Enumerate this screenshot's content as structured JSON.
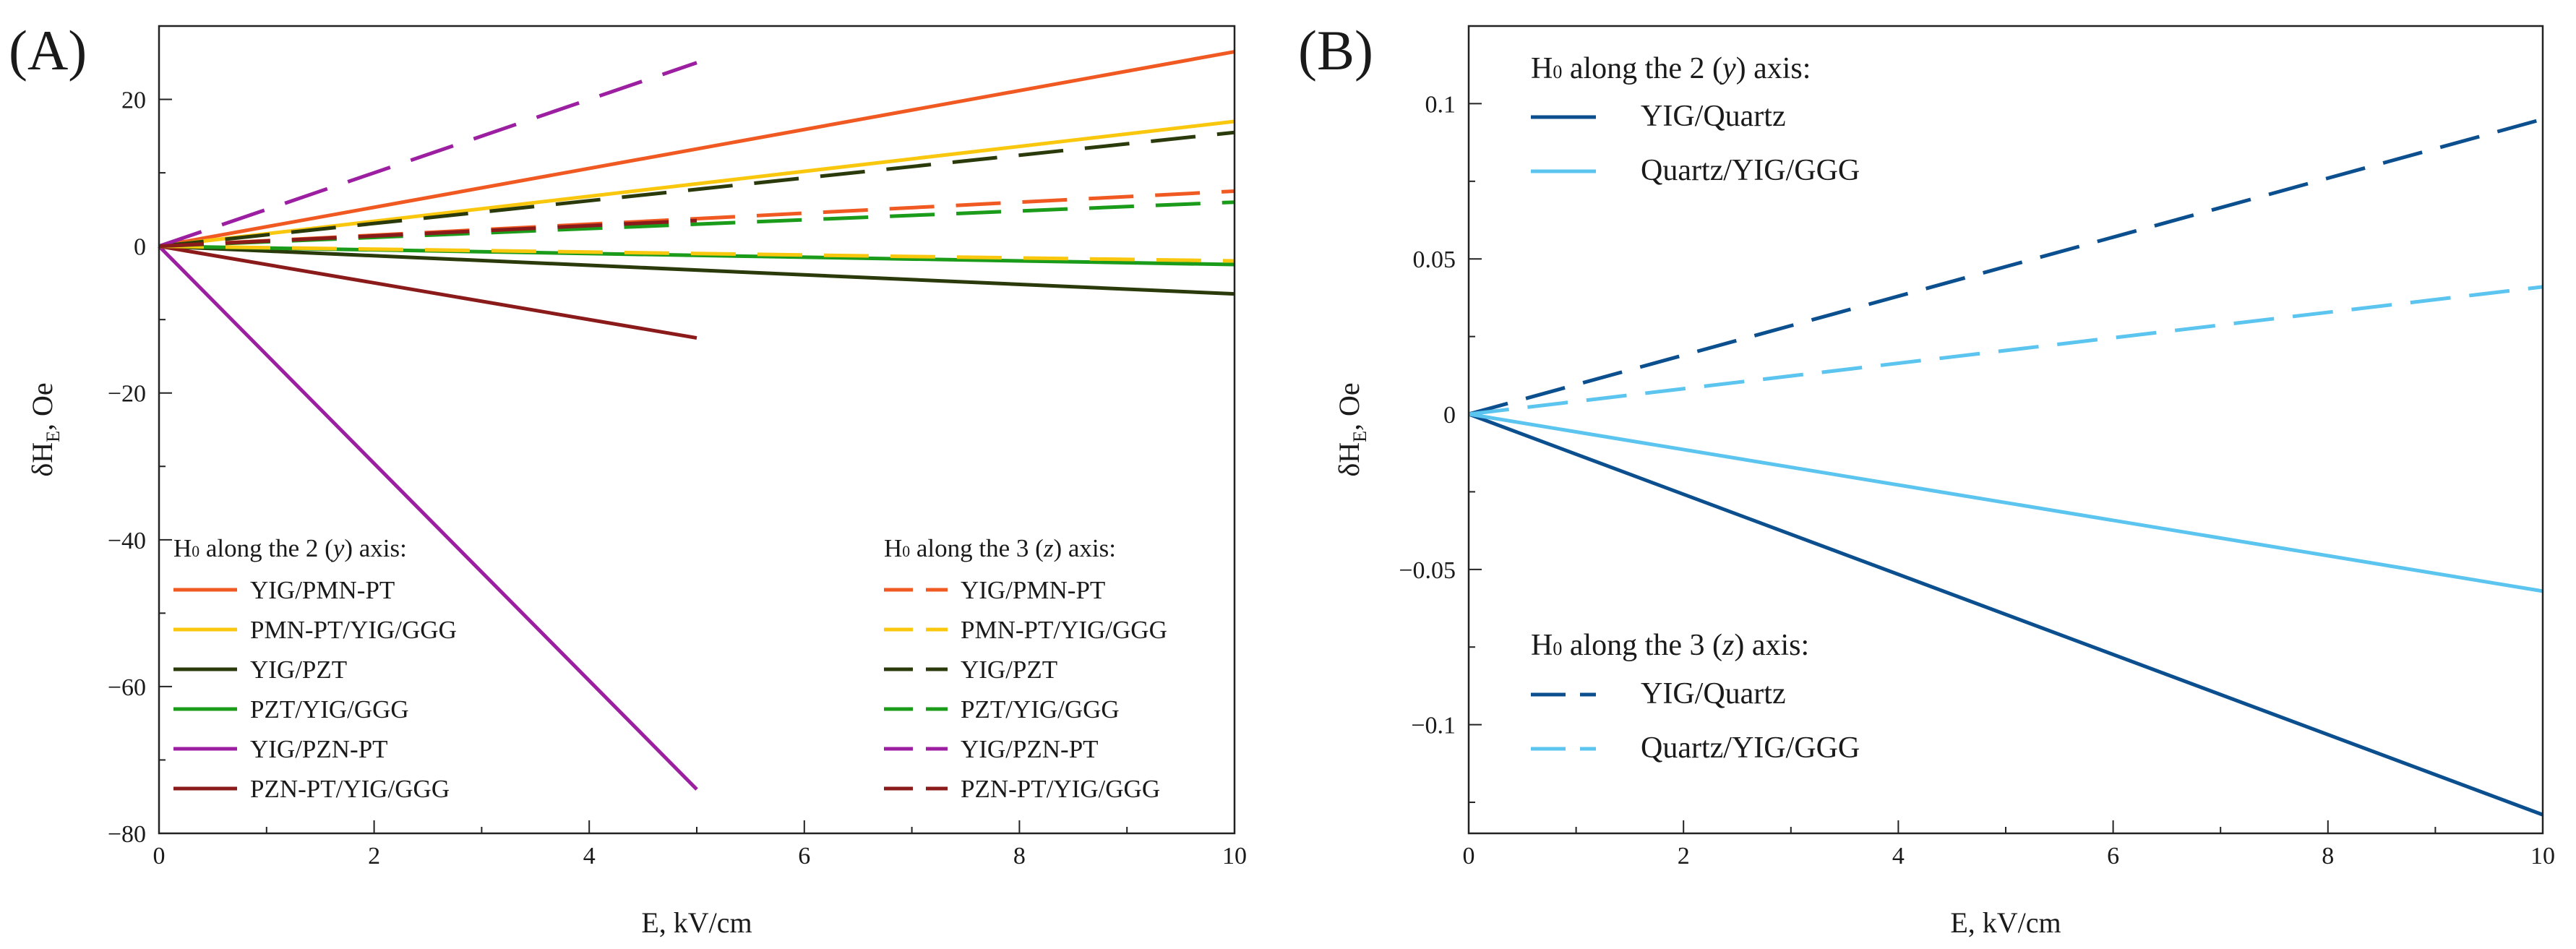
{
  "chart_data": [
    {
      "type": "line",
      "panel_label": "(A)",
      "xlabel": "E, kV/cm",
      "ylabel": "δH_E, Oe",
      "ylabel_main": "δH",
      "ylabel_sub": "E",
      "ylabel_rest": ", Oe",
      "xlim": [
        0,
        10
      ],
      "ylim": [
        -80,
        30
      ],
      "xticks": [
        0,
        2,
        4,
        6,
        8,
        10
      ],
      "yticks": [
        -80,
        -60,
        -40,
        -20,
        0,
        20
      ],
      "xtick_labels": [
        "0",
        "2",
        "4",
        "6",
        "8",
        "10"
      ],
      "ytick_labels": [
        "−80",
        "−60",
        "−40",
        "−20",
        "0",
        "20"
      ],
      "legend_groups": [
        {
          "title": "H₀ along the 2 (y) axis:",
          "title_parts": [
            "H",
            "0",
            " along the 2 (",
            "y",
            ") axis:"
          ],
          "position": "bottom-left",
          "style": "solid"
        },
        {
          "title": "H₀ along the 3 (z) axis:",
          "title_parts": [
            "H",
            "0",
            " along the 3 (",
            "z",
            ") axis:"
          ],
          "position": "bottom-right",
          "style": "dashed"
        }
      ],
      "series": [
        {
          "name": "YIG/PMN-PT",
          "group": 0,
          "style": "solid",
          "color": "#f05a22",
          "x": [
            0,
            10
          ],
          "y": [
            0,
            26.5
          ]
        },
        {
          "name": "PMN-PT/YIG/GGG",
          "group": 0,
          "style": "solid",
          "color": "#f9c80e",
          "x": [
            0,
            10
          ],
          "y": [
            0,
            17
          ]
        },
        {
          "name": "YIG/PZT",
          "group": 0,
          "style": "solid",
          "color": "#2b3a0b",
          "x": [
            0,
            10
          ],
          "y": [
            0,
            -6.5
          ]
        },
        {
          "name": "PZT/YIG/GGG",
          "group": 0,
          "style": "solid",
          "color": "#1a9b1a",
          "x": [
            0,
            10
          ],
          "y": [
            0,
            -2.5
          ]
        },
        {
          "name": "YIG/PZN-PT",
          "group": 0,
          "style": "solid",
          "color": "#9b1fa0",
          "x": [
            0,
            5
          ],
          "y": [
            0,
            -74
          ]
        },
        {
          "name": "PZN-PT/YIG/GGG",
          "group": 0,
          "style": "solid",
          "color": "#8b1a1a",
          "x": [
            0,
            5
          ],
          "y": [
            0,
            -12.5
          ]
        },
        {
          "name": "YIG/PMN-PT",
          "group": 1,
          "style": "dashed",
          "color": "#f05a22",
          "x": [
            0,
            10
          ],
          "y": [
            0,
            7.5
          ]
        },
        {
          "name": "PMN-PT/YIG/GGG",
          "group": 1,
          "style": "dashed",
          "color": "#f9c80e",
          "x": [
            0,
            10
          ],
          "y": [
            0,
            -2
          ]
        },
        {
          "name": "YIG/PZT",
          "group": 1,
          "style": "dashed",
          "color": "#2b3a0b",
          "x": [
            0,
            10
          ],
          "y": [
            0,
            15.5
          ]
        },
        {
          "name": "PZT/YIG/GGG",
          "group": 1,
          "style": "dashed",
          "color": "#1a9b1a",
          "x": [
            0,
            10
          ],
          "y": [
            0,
            6
          ]
        },
        {
          "name": "YIG/PZN-PT",
          "group": 1,
          "style": "dashed",
          "color": "#9b1fa0",
          "x": [
            0,
            5
          ],
          "y": [
            0,
            25
          ]
        },
        {
          "name": "PZN-PT/YIG/GGG",
          "group": 1,
          "style": "dashed",
          "color": "#8b1a1a",
          "x": [
            0,
            5
          ],
          "y": [
            0,
            3.5
          ]
        }
      ]
    },
    {
      "type": "line",
      "panel_label": "(B)",
      "xlabel": "E, kV/cm",
      "ylabel": "δH_E, Oe",
      "ylabel_main": "δH",
      "ylabel_sub": "E",
      "ylabel_rest": ", Oe",
      "xlim": [
        0,
        10
      ],
      "ylim": [
        -0.135,
        0.125
      ],
      "xticks": [
        0,
        2,
        4,
        6,
        8,
        10
      ],
      "yticks": [
        -0.1,
        -0.05,
        0,
        0.05,
        0.1
      ],
      "xtick_labels": [
        "0",
        "2",
        "4",
        "6",
        "8",
        "10"
      ],
      "ytick_labels": [
        "−0.1",
        "−0.05",
        "0",
        "0.05",
        "0.1"
      ],
      "legend_groups": [
        {
          "title": "H₀ along the 2 (y) axis:",
          "title_parts": [
            "H",
            "0",
            " along the 2 (",
            "y",
            ") axis:"
          ],
          "position": "top-left",
          "style": "solid"
        },
        {
          "title": "H₀ along the 3 (z) axis:",
          "title_parts": [
            "H",
            "0",
            " along the 3 (",
            "z",
            ") axis:"
          ],
          "position": "bottom-left",
          "style": "dashed"
        }
      ],
      "series": [
        {
          "name": "YIG/Quartz",
          "group": 0,
          "style": "solid",
          "color": "#0b4f8f",
          "x": [
            0,
            10
          ],
          "y": [
            0,
            -0.129
          ]
        },
        {
          "name": "Quartz/YIG/GGG",
          "group": 0,
          "style": "solid",
          "color": "#5bc4ef",
          "x": [
            0,
            10
          ],
          "y": [
            0,
            -0.057
          ]
        },
        {
          "name": "YIG/Quartz",
          "group": 1,
          "style": "dashed",
          "color": "#0b4f8f",
          "x": [
            0,
            10
          ],
          "y": [
            0,
            0.095
          ]
        },
        {
          "name": "Quartz/YIG/GGG",
          "group": 1,
          "style": "dashed",
          "color": "#5bc4ef",
          "x": [
            0,
            10
          ],
          "y": [
            0,
            0.041
          ]
        }
      ]
    }
  ]
}
